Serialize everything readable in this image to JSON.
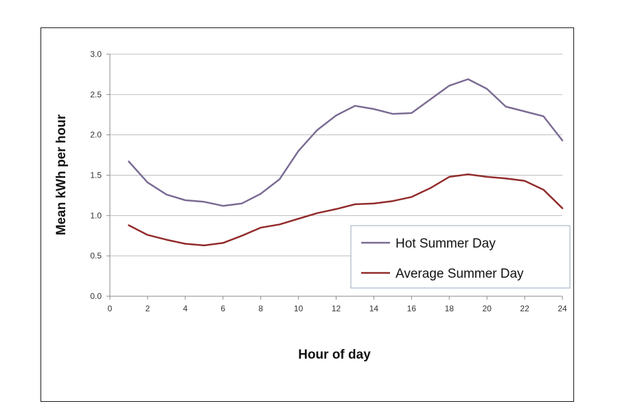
{
  "chart_data": {
    "type": "line",
    "xlabel": "Hour of day",
    "ylabel": "Mean kWh per hour",
    "xlim": [
      0,
      24
    ],
    "ylim": [
      0,
      3.0
    ],
    "x_ticks": [
      "0",
      "2",
      "4",
      "6",
      "8",
      "10",
      "12",
      "14",
      "16",
      "18",
      "20",
      "22",
      "24"
    ],
    "y_ticks": [
      "0.0",
      "0.5",
      "1.0",
      "1.5",
      "2.0",
      "2.5",
      "3.0"
    ],
    "grid": "horizontal",
    "legend_position": "bottom-right",
    "x": [
      1,
      2,
      3,
      4,
      5,
      6,
      7,
      8,
      9,
      10,
      11,
      12,
      13,
      14,
      15,
      16,
      17,
      18,
      19,
      20,
      21,
      22,
      23,
      24
    ],
    "series": [
      {
        "name": "Hot Summer Day",
        "color": "#7b6b93",
        "values": [
          1.67,
          1.41,
          1.26,
          1.19,
          1.17,
          1.12,
          1.15,
          1.27,
          1.45,
          1.8,
          2.06,
          2.24,
          2.36,
          2.32,
          2.26,
          2.27,
          2.44,
          2.61,
          2.69,
          2.57,
          2.35,
          2.29,
          2.23,
          1.93
        ]
      },
      {
        "name": "Average Summer Day",
        "color": "#922b2b",
        "values": [
          0.88,
          0.76,
          0.7,
          0.65,
          0.63,
          0.66,
          0.75,
          0.85,
          0.89,
          0.96,
          1.03,
          1.08,
          1.14,
          1.15,
          1.18,
          1.23,
          1.34,
          1.48,
          1.51,
          1.48,
          1.46,
          1.43,
          1.32,
          1.09
        ]
      }
    ]
  }
}
